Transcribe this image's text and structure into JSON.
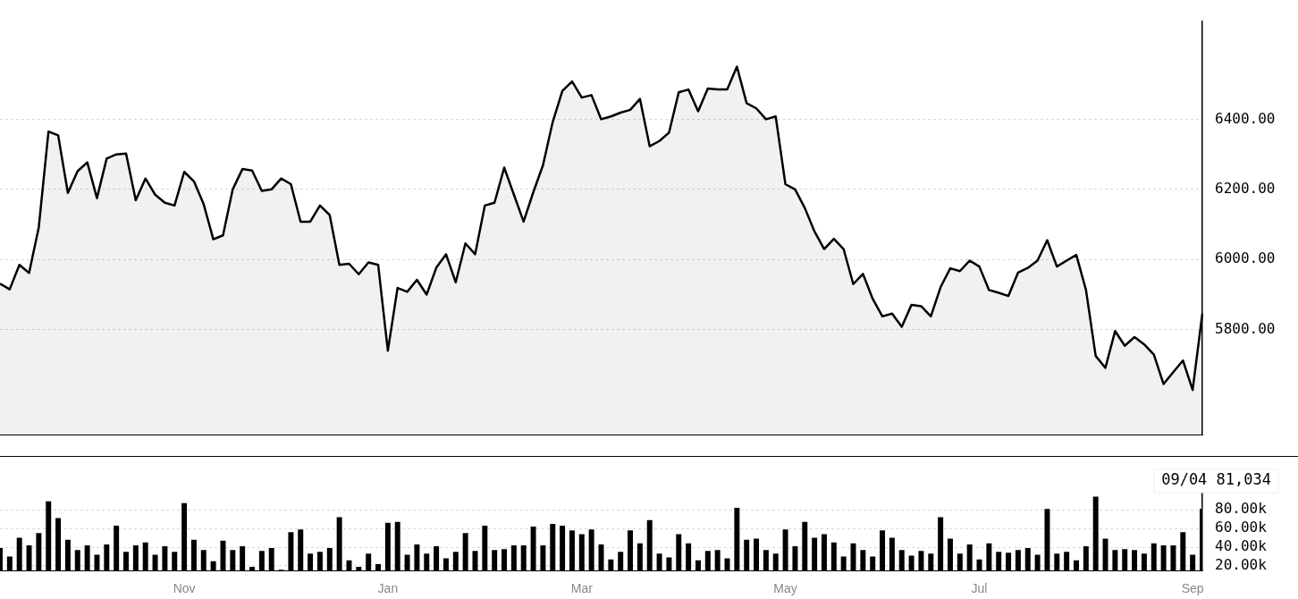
{
  "chart_data": [
    {
      "type": "area",
      "categories": [
        null,
        null,
        null,
        null,
        null,
        null,
        null,
        null,
        null,
        null,
        null,
        null,
        null,
        null,
        null,
        null,
        null,
        null,
        null,
        null,
        null,
        null,
        null,
        null,
        null,
        null,
        null,
        null,
        null,
        null,
        null,
        null,
        null,
        null,
        null,
        null,
        null,
        null,
        null,
        null,
        null,
        null,
        null,
        null,
        null,
        null,
        null,
        null,
        null,
        null,
        null,
        null,
        null,
        null,
        null,
        null,
        null,
        null,
        null,
        null,
        null,
        null,
        null,
        null,
        null,
        null,
        null,
        null,
        null,
        null,
        null,
        null,
        null,
        null,
        null,
        null,
        null,
        null,
        null,
        null,
        null,
        null,
        null,
        null,
        null,
        null,
        null,
        null,
        null,
        null,
        null,
        null,
        null,
        null,
        null,
        null,
        null,
        null,
        null,
        null,
        null,
        null,
        null,
        null,
        null,
        null,
        null,
        null,
        null,
        null,
        null,
        null,
        null,
        null,
        null,
        null,
        null,
        null,
        null,
        null,
        null,
        null,
        null,
        null,
        null
      ],
      "series": [
        {
          "color": "#000000",
          "values": [
            5931,
            5915,
            5985,
            5962,
            6092,
            6365,
            6354,
            6190,
            6252,
            6277,
            6175,
            6288,
            6300,
            6302,
            6169,
            6231,
            6185,
            6162,
            6154,
            6250,
            6223,
            6158,
            6058,
            6069,
            6200,
            6258,
            6254,
            6196,
            6200,
            6231,
            6215,
            6108,
            6108,
            6154,
            6127,
            5985,
            5988,
            5958,
            5992,
            5985,
            5740,
            5919,
            5908,
            5942,
            5900,
            5977,
            6015,
            5935,
            6046,
            6015,
            6154,
            6162,
            6262,
            6185,
            6108,
            6192,
            6269,
            6392,
            6481,
            6508,
            6462,
            6469,
            6400,
            6408,
            6419,
            6427,
            6458,
            6323,
            6338,
            6362,
            6477,
            6485,
            6423,
            6488,
            6485,
            6485,
            6550,
            6446,
            6431,
            6400,
            6408,
            6215,
            6200,
            6147,
            6080,
            6030,
            6059,
            6030,
            5930,
            5959,
            5888,
            5838,
            5846,
            5808,
            5871,
            5867,
            5838,
            5921,
            5975,
            5967,
            5997,
            5980,
            5913,
            5905,
            5896,
            5963,
            5976,
            5997,
            6055,
            5980,
            5997,
            6013,
            5913,
            5725,
            5691,
            5796,
            5754,
            5779,
            5758,
            5729,
            5645,
            5679,
            5712,
            5628,
            5846
          ]
        }
      ],
      "ylim": [
        5500,
        6680
      ],
      "yticks": [
        {
          "value": 5800,
          "label": "5800.00"
        },
        {
          "value": 6000,
          "label": "6000.00"
        },
        {
          "value": 6200,
          "label": "6200.00"
        },
        {
          "value": 6400,
          "label": "6400.00"
        }
      ],
      "grid": "y",
      "legend": false,
      "tick_labels": "y",
      "marker": "none"
    },
    {
      "type": "bar",
      "categories": [
        null,
        null,
        null,
        null,
        null,
        null,
        null,
        null,
        null,
        null,
        null,
        null,
        null,
        null,
        null,
        null,
        null,
        null,
        null,
        "Nov",
        null,
        null,
        null,
        null,
        null,
        null,
        null,
        null,
        null,
        null,
        null,
        null,
        null,
        null,
        null,
        null,
        null,
        null,
        null,
        null,
        "Jan",
        null,
        null,
        null,
        null,
        null,
        null,
        null,
        null,
        null,
        null,
        null,
        null,
        null,
        null,
        null,
        null,
        null,
        null,
        null,
        "Mar",
        null,
        null,
        null,
        null,
        null,
        null,
        null,
        null,
        null,
        null,
        null,
        null,
        null,
        null,
        null,
        null,
        null,
        null,
        null,
        null,
        "May",
        null,
        null,
        null,
        null,
        null,
        null,
        null,
        null,
        null,
        null,
        null,
        null,
        null,
        null,
        null,
        null,
        null,
        null,
        null,
        "Jul",
        null,
        null,
        null,
        null,
        null,
        null,
        null,
        null,
        null,
        null,
        null,
        null,
        null,
        null,
        null,
        null,
        null,
        null,
        null,
        null,
        null,
        "Sep",
        null
      ],
      "series": [
        {
          "color": "#000000",
          "values": [
            39000,
            30000,
            50000,
            42000,
            55000,
            89000,
            71000,
            48000,
            37000,
            42000,
            32000,
            43000,
            63000,
            35000,
            42000,
            45000,
            32000,
            41000,
            35000,
            87000,
            48000,
            37000,
            25000,
            47000,
            37000,
            41000,
            19000,
            36000,
            39000,
            16000,
            56000,
            59000,
            33000,
            35000,
            39000,
            72000,
            26000,
            19000,
            33000,
            22000,
            66000,
            67000,
            32000,
            43000,
            33000,
            41000,
            28000,
            35000,
            55000,
            36000,
            63000,
            37000,
            38000,
            42000,
            42000,
            62000,
            42000,
            65000,
            63000,
            58000,
            54000,
            59000,
            43000,
            27000,
            35000,
            58000,
            44000,
            69000,
            33000,
            29000,
            54000,
            44000,
            26000,
            36000,
            37000,
            28000,
            82000,
            48000,
            49000,
            37000,
            33000,
            59000,
            41000,
            67000,
            50000,
            54000,
            45000,
            30000,
            44000,
            37000,
            30000,
            58000,
            50000,
            37000,
            31000,
            36000,
            33000,
            72000,
            49000,
            33000,
            43000,
            27000,
            44000,
            35000,
            34000,
            37000,
            39000,
            32000,
            81000,
            33000,
            35000,
            26000,
            41000,
            94000,
            49000,
            37000,
            38000,
            37000,
            33000,
            44000,
            42000,
            42000,
            56000,
            32000,
            81034
          ]
        }
      ],
      "ylim": [
        15000,
        114000
      ],
      "yticks": [
        {
          "value": 20000,
          "label": "20.00k"
        },
        {
          "value": 40000,
          "label": "40.00k"
        },
        {
          "value": 60000,
          "label": "60.00k"
        },
        {
          "value": 80000,
          "label": "80.00k"
        }
      ],
      "grid": "y",
      "legend": false,
      "annotations": [
        "09/04 81,034"
      ]
    }
  ]
}
